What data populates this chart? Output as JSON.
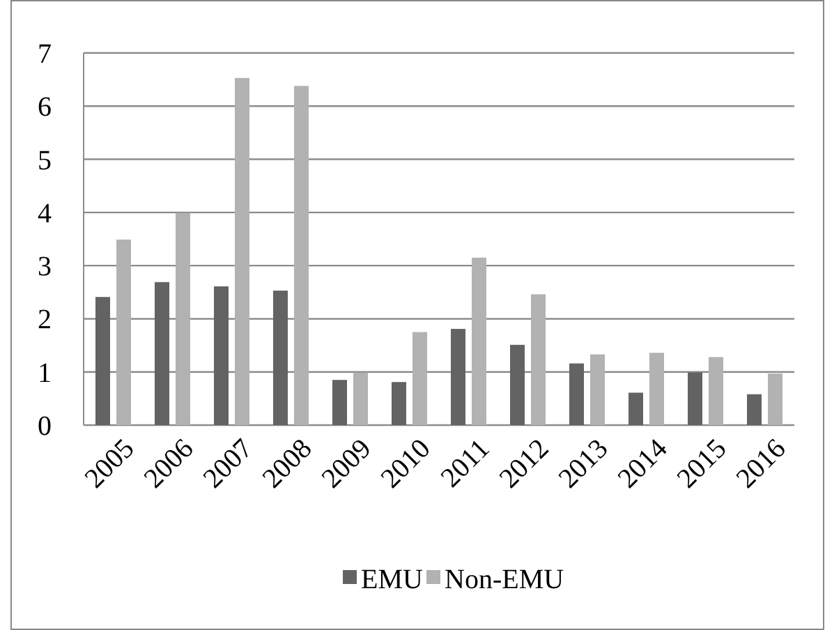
{
  "chart_data": {
    "type": "bar",
    "categories": [
      "2005",
      "2006",
      "2007",
      "2008",
      "2009",
      "2010",
      "2011",
      "2012",
      "2013",
      "2014",
      "2015",
      "2016"
    ],
    "series": [
      {
        "name": "EMU",
        "color": "#636363",
        "values": [
          2.41,
          2.69,
          2.61,
          2.53,
          0.85,
          0.81,
          1.81,
          1.51,
          1.16,
          0.61,
          0.99,
          0.58
        ]
      },
      {
        "name": "Non-EMU",
        "color": "#b2b2b2",
        "values": [
          3.49,
          3.99,
          6.53,
          6.38,
          0.99,
          1.75,
          3.15,
          2.46,
          1.33,
          1.36,
          1.28,
          0.97
        ]
      }
    ],
    "ylim": [
      0,
      7
    ],
    "yticks": [
      0,
      1,
      2,
      3,
      4,
      5,
      6,
      7
    ],
    "grid": "y",
    "legend": "bottom"
  }
}
